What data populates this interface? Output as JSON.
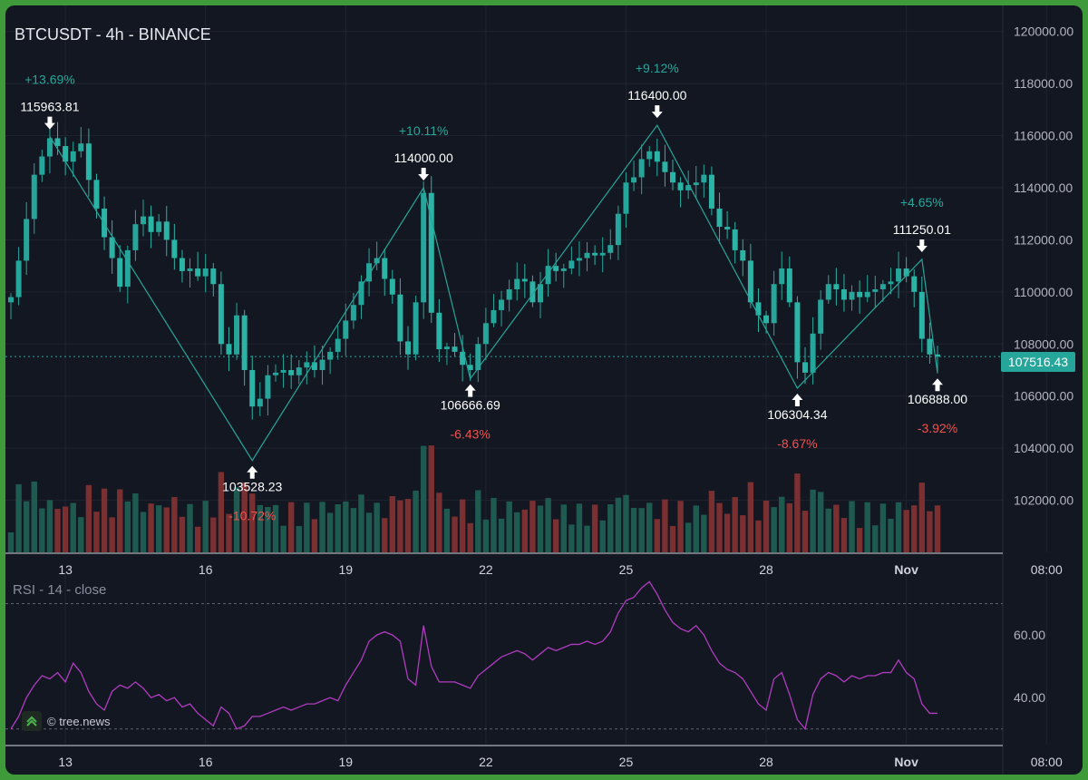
{
  "header": {
    "title": "BTCUSDT - 4h - BINANCE",
    "rsi_title": "RSI - 14 - close",
    "watermark": "© tree.news",
    "last_price": "107516.43"
  },
  "colors": {
    "background": "#131722",
    "grid": "#1f2430",
    "up": "#26a69a",
    "down": "#ef5350",
    "volume_up": "#1e5a50",
    "volume_down": "#7a2f31",
    "rsi_line": "#b03cbf",
    "zigzag": "#26a69a",
    "frame": "#3f9b3a"
  },
  "chart_data": [
    {
      "type": "candlestick",
      "title": "BTCUSDT - 4h - BINANCE",
      "interval": "4h",
      "y_axis_side": "right",
      "ylim": [
        100000,
        121000
      ],
      "y_ticks": [
        "120000.00",
        "118000.00",
        "116000.00",
        "114000.00",
        "112000.00",
        "110000.00",
        "108000.00",
        "106000.00",
        "104000.00",
        "102000.00"
      ],
      "x_ticks": [
        "13",
        "16",
        "19",
        "22",
        "25",
        "28",
        "Nov",
        "08:00"
      ],
      "x_tick_index": [
        7,
        25,
        43,
        61,
        79,
        97,
        115,
        133
      ],
      "last_price": 107516.43,
      "grid": true,
      "closes": [
        109800,
        111200,
        112800,
        114500,
        115200,
        115900,
        115600,
        115000,
        115400,
        115700,
        114300,
        113200,
        112100,
        111300,
        110200,
        111600,
        112600,
        112900,
        112300,
        112700,
        112000,
        111300,
        110800,
        110900,
        110600,
        110900,
        110300,
        108000,
        107600,
        109100,
        107000,
        105600,
        105900,
        106800,
        106900,
        107000,
        106800,
        107100,
        107300,
        107000,
        107400,
        107700,
        108200,
        108900,
        109500,
        110400,
        111100,
        111300,
        110500,
        109900,
        108100,
        107600,
        109600,
        113800,
        109200,
        107800,
        107900,
        107700,
        107200,
        107000,
        108000,
        108800,
        109300,
        109700,
        110100,
        110500,
        110400,
        109600,
        110300,
        111000,
        110800,
        110900,
        111200,
        111300,
        111500,
        111400,
        111500,
        111800,
        113000,
        114200,
        114400,
        115100,
        115400,
        115000,
        114600,
        114200,
        113900,
        114100,
        114200,
        114500,
        113200,
        112500,
        112400,
        111600,
        111200,
        109600,
        109100,
        108800,
        110300,
        110900,
        109600,
        107300,
        106900,
        108400,
        109700,
        110300,
        110100,
        109700,
        110000,
        109800,
        110000,
        110100,
        110300,
        110400,
        110900,
        110600,
        110000,
        108200,
        107600,
        107516.43
      ],
      "swing_points": [
        {
          "index": 5,
          "price": 115963.81,
          "type": "high",
          "change": "+13.69%"
        },
        {
          "index": 31,
          "price": 103528.23,
          "type": "low",
          "change": "-10.72%"
        },
        {
          "index": 53,
          "price": 114000.0,
          "type": "high",
          "change": "+10.11%"
        },
        {
          "index": 59,
          "price": 106666.69,
          "type": "low",
          "change": "-6.43%"
        },
        {
          "index": 83,
          "price": 116400.0,
          "type": "high",
          "change": "+9.12%"
        },
        {
          "index": 101,
          "price": 106304.34,
          "type": "low",
          "change": "-8.67%"
        },
        {
          "index": 117,
          "price": 111250.01,
          "type": "high",
          "change": "+4.65%"
        },
        {
          "index": 119,
          "price": 106888.0,
          "type": "low",
          "change": "-3.92%"
        }
      ],
      "swing_labels": [
        "115963.81",
        "103528.23",
        "114000.00",
        "106666.69",
        "116400.00",
        "106304.34",
        "111250.01",
        "106888.00"
      ],
      "change_labels": [
        "+13.69%",
        "-10.72%",
        "+10.11%",
        "-6.43%",
        "+9.12%",
        "-8.67%",
        "+4.65%",
        "-3.92%"
      ]
    },
    {
      "type": "line",
      "title": "RSI - 14 - close",
      "y_axis_side": "right",
      "ylim": [
        25,
        80
      ],
      "y_ticks": [
        "60.00",
        "40.00"
      ],
      "levels": [
        70,
        30
      ],
      "x_ticks": [
        "13",
        "16",
        "19",
        "22",
        "25",
        "28",
        "Nov",
        "08:00"
      ],
      "values": [
        30,
        34,
        40,
        44,
        47,
        46,
        48,
        45,
        51,
        48,
        42,
        38,
        36,
        42,
        44,
        43,
        45,
        43,
        40,
        41,
        39,
        40,
        37,
        38,
        35,
        33,
        31,
        37,
        35,
        30,
        31,
        34,
        34,
        35,
        36,
        37,
        36,
        37,
        38,
        38,
        39,
        40,
        39,
        44,
        48,
        52,
        58,
        60,
        61,
        60,
        58,
        46,
        44,
        63,
        50,
        45,
        45,
        45,
        44,
        43,
        47,
        49,
        51,
        53,
        54,
        55,
        54,
        52,
        54,
        56,
        55,
        56,
        57,
        57,
        58,
        57,
        58,
        61,
        67,
        71,
        72,
        75,
        77,
        73,
        68,
        64,
        62,
        61,
        63,
        60,
        55,
        51,
        49,
        48,
        46,
        42,
        38,
        36,
        46,
        48,
        41,
        33,
        30,
        41,
        46,
        48,
        47,
        45,
        47,
        46,
        47,
        47,
        48,
        48,
        52,
        48,
        46,
        38,
        35,
        35
      ]
    }
  ]
}
